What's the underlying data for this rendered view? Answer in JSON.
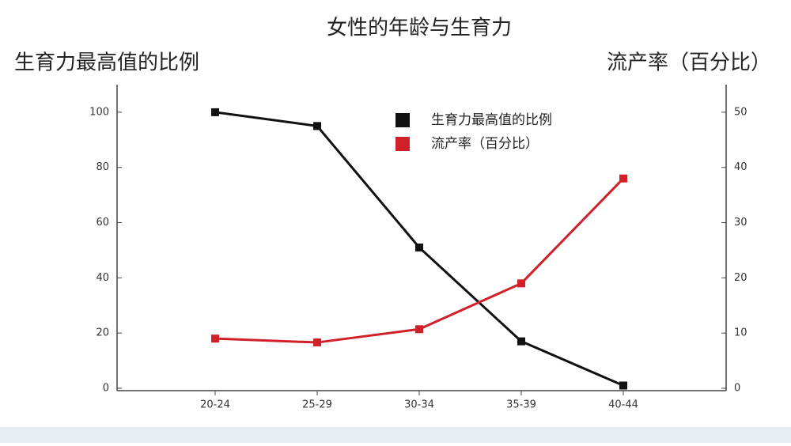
{
  "chart_data": {
    "type": "line",
    "title": "女性的年龄与生育力",
    "ylabel": "生育力最高值的比例",
    "y2label": "流产率（百分比）",
    "categories": [
      "20-24",
      "25-29",
      "30-34",
      "35-39",
      "40-44"
    ],
    "series": [
      {
        "name": "生育力最高值的比例",
        "color": "#111111",
        "values": [
          100,
          95,
          51,
          17,
          1
        ]
      },
      {
        "name": "流产率（百分比）",
        "color": "#d0202a",
        "axis": "y2",
        "values": [
          9,
          8.3,
          10.7,
          19,
          38
        ]
      }
    ],
    "ylim": [
      0,
      110
    ],
    "yticks": [
      0,
      20,
      40,
      60,
      80,
      100
    ],
    "y2lim": [
      0,
      55
    ],
    "y2ticks": [
      0,
      10,
      20,
      30,
      40,
      50
    ],
    "legend": "top-center"
  }
}
